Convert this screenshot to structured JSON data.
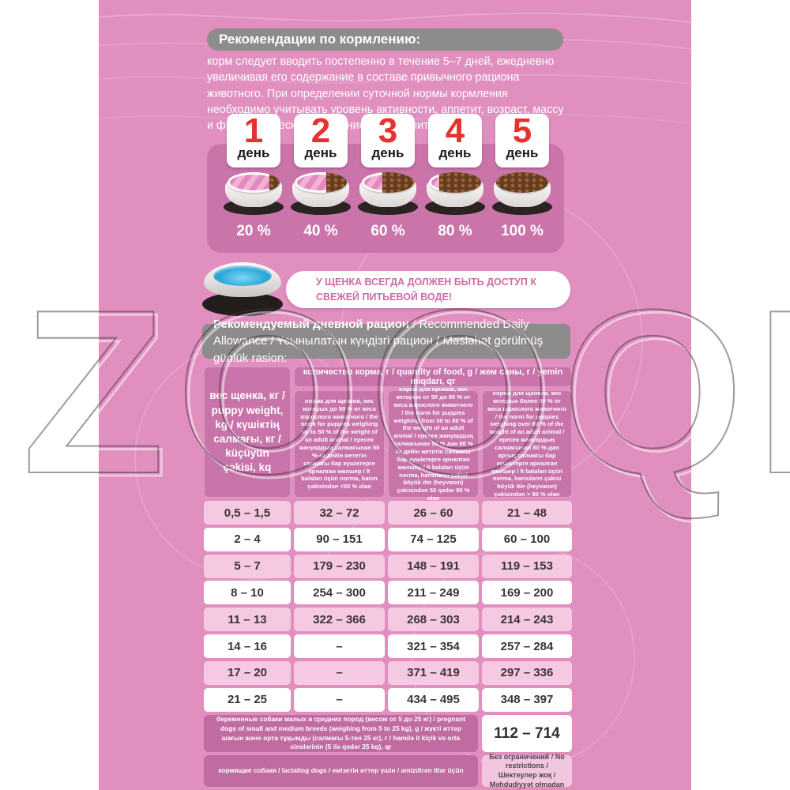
{
  "watermark": "ZOOQI",
  "header": {
    "title": "Рекомендации по кормлению:"
  },
  "intro": "корм следует вводить постепенно в течение 5–7 дней, ежедневно увеличивая его содержание в составе привычного рациона животного. При определении суточной нормы кормления необходимо учитывать уровень активности, аппетит, возраст, массу и физиологическое состояние Вашего питомца.",
  "days": [
    {
      "number": "1",
      "label": "день",
      "percent": "20 %",
      "fill": 20
    },
    {
      "number": "2",
      "label": "день",
      "percent": "40 %",
      "fill": 40
    },
    {
      "number": "3",
      "label": "день",
      "percent": "60 %",
      "fill": 60
    },
    {
      "number": "4",
      "label": "день",
      "percent": "80 %",
      "fill": 80
    },
    {
      "number": "5",
      "label": "день",
      "percent": "100 %",
      "fill": 100
    }
  ],
  "water_note": "У ЩЕНКА ВСЕГДА ДОЛЖЕН БЫТЬ ДОСТУП К СВЕЖЕЙ ПИТЬЕВОЙ ВОДЕ!",
  "table": {
    "title_bold": "Рекомендуемый дневной рацион",
    "title_rest": " / Recommended Daily Allowance / Ұсынылатын күндізгі рацион / Məsləhət görülmüş günlük rasion:",
    "col_weight_header": "вес щенка, кг / puppy weight, kg / күшіктің салмағы, кг / küçüyün çəkisi, kq",
    "quantity_header": "количество корма, г / quantity of food, g / жем саны, г / yemin miqdarı, qr",
    "norm_headers": [
      "норма для щенков, вес которых до 50 % от веса взрослого животного / the norm for puppies weighing up to 50 % of the weight of an adult animal / ересек жануардың салмағынан 50 %-ға дейін жететін салмағы бар күшіктерге арналған мөлшер / İt balaları üçün norma, hanın çəkisindən <50 % olan",
      "норма для щенков, вес которых от 50 до 80 % от веса взрослого животного / the norm for puppies weighing from 50 to 80 % of the weight of an adult animal / ересек жануардың салмағынан 50 % дан 80 % ға дейін жететін салмағы бар күшіктерге арналған мөлшер / İt balaları üçün norma, hansıların çəkisi böyük itin (heyvanın) çəkisindən 50 qədər 80 % olan",
      "норма для щенков, вес которых более 80 % от веса взрослого животного / the norm for puppies weighing over 80 % of the weight of an adult animal / ересек жануардың салмағынан 80 %-дан артық салмағы бар күшіктерге арналған мөлшер / İt balaları üçün norma, hansıların çəkisi böyük itin (heyvanın) çəkisindən > 80 % olan"
    ],
    "rows": [
      [
        "0,5 – 1,5",
        "32 – 72",
        "26 – 60",
        "21 – 48"
      ],
      [
        "2 – 4",
        "90 – 151",
        "74 – 125",
        "60 – 100"
      ],
      [
        "5 – 7",
        "179 – 230",
        "148 – 191",
        "119 – 153"
      ],
      [
        "8 – 10",
        "254 – 300",
        "211 – 249",
        "169 – 200"
      ],
      [
        "11 – 13",
        "322 – 366",
        "268 – 303",
        "214 – 243"
      ],
      [
        "14 – 16",
        "–",
        "321 – 354",
        "257 – 284"
      ],
      [
        "17 – 20",
        "–",
        "371 – 419",
        "297 – 336"
      ],
      [
        "21 – 25",
        "–",
        "434 – 495",
        "348 – 397"
      ]
    ],
    "pregnant_label": "беременные собаки малых и средних пород (весом от 5 до 25 кг) / pregnant dogs of small and medium breeds (weighing from 5 to 25 kg), g / жүкті иттер шағын және орта тұқымды (салмағы 5-тен 25 кг), г / hamilə it kiçik və orta cinslərinin (5 ilə qədər 25 kq), qr",
    "pregnant_value": "112 – 714",
    "lactating_label": "кормящие собаки / lactating dogs / емізетін иттер үшін / əmizdirən itlər üçün",
    "lactating_value": "Без ограничений / No restrictions / Шектеулер жоқ / Məhdudiyyət olmadan"
  },
  "colors": {
    "panel_pink": "#e08fbf",
    "days_box_pink": "#ca74aa",
    "day_number_red": "#e6312e",
    "gray_bar": "#8d8b8c",
    "header_cell_pink": "#c873a9",
    "row_pink": "#f6c9e2",
    "row_white": "#ffffff",
    "special_cell_pink": "#c06ba1",
    "light_value_cell": "#f2c6de",
    "banner_text_pink": "#cf6ba6",
    "water_blue": "#2fa9dc",
    "kibble_brown": "#643d20"
  }
}
